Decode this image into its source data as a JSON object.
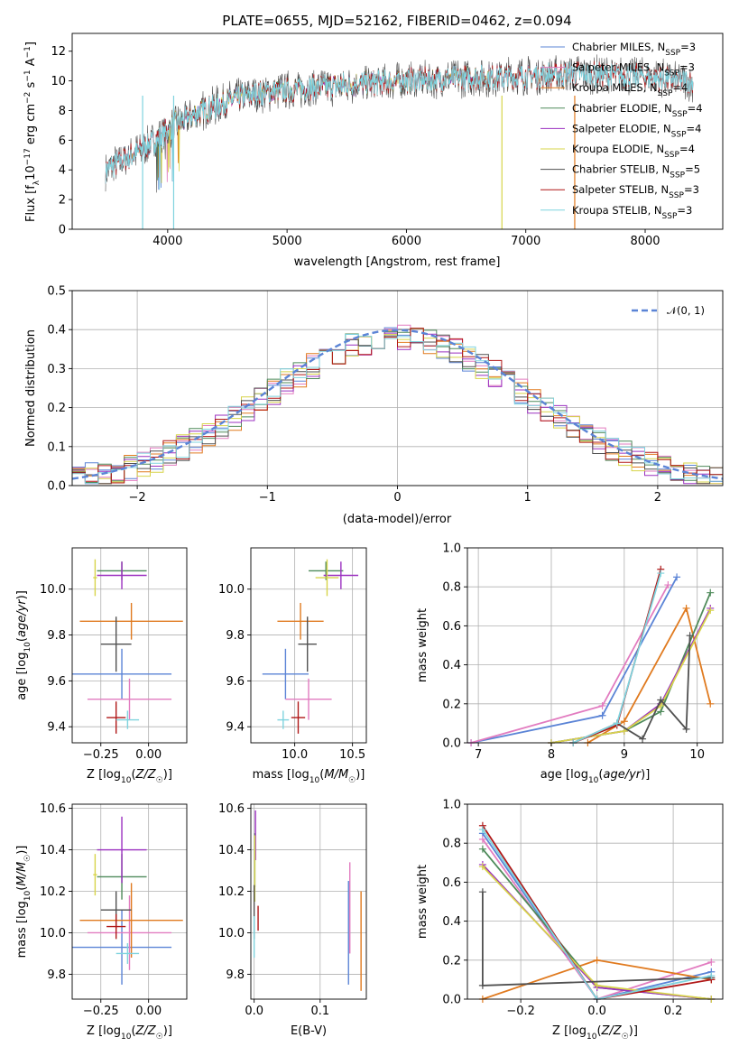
{
  "chart_data": [
    {
      "type": "line",
      "title": "PLATE=0655, MJD=52162, FIBERID=0462, z=0.094",
      "xlabel": "wavelength [Angstrom, rest frame]",
      "ylabel": "Flux [f_λ 10^-17 erg cm^-2 s^-1 A^-1]",
      "xlim": [
        3200,
        8650
      ],
      "ylim": [
        0,
        13.2
      ],
      "xticks": [
        4000,
        5000,
        6000,
        7000,
        8000
      ],
      "yticks": [
        0,
        2,
        4,
        6,
        8,
        10,
        12
      ],
      "legend_position": "right",
      "series": [
        {
          "name": "Chabrier MILES, N_SSP=3",
          "color": "#5b84d6",
          "range": [
            3540,
            7410
          ]
        },
        {
          "name": "Salpeter MILES, N_SSP=3",
          "color": "#e27cc0",
          "range": [
            3540,
            7410
          ]
        },
        {
          "name": "Kroupa MILES, N_SSP=4",
          "color": "#e07a1f",
          "range": [
            3540,
            7410
          ]
        },
        {
          "name": "Chabrier ELODIE, N_SSP=4",
          "color": "#4e8a5a",
          "range": [
            3900,
            6800
          ]
        },
        {
          "name": "Salpeter ELODIE, N_SSP=4",
          "color": "#9b30c0",
          "range": [
            3900,
            6800
          ]
        },
        {
          "name": "Kroupa ELODIE, N_SSP=4",
          "color": "#d7d44a",
          "range": [
            3900,
            6800
          ]
        },
        {
          "name": "Chabrier STELIB, N_SSP=5",
          "color": "#505050",
          "range": [
            3480,
            8400
          ]
        },
        {
          "name": "Salpeter STELIB, N_SSP=3",
          "color": "#b01717",
          "range": [
            3480,
            8400
          ]
        },
        {
          "name": "Kroupa STELIB, N_SSP=3",
          "color": "#7fd3de",
          "range": [
            3480,
            8400
          ]
        }
      ],
      "spectrum_nodes": {
        "x": [
          3480,
          3540,
          3700,
          3900,
          4050,
          4300,
          4600,
          4900,
          5200,
          5600,
          6000,
          6500,
          7000,
          7400,
          8000,
          8400
        ],
        "y": [
          4.0,
          4.3,
          5.0,
          6.0,
          7.0,
          8.0,
          8.9,
          9.3,
          9.5,
          9.8,
          10.0,
          10.2,
          10.3,
          10.5,
          10.3,
          9.9
        ]
      }
    },
    {
      "type": "step-histogram",
      "xlabel": "(data-model)/error",
      "ylabel": "Normed distribution",
      "xlim": [
        -2.5,
        2.5
      ],
      "ylim": [
        0,
        0.5
      ],
      "xticks": [
        -2,
        -1,
        0,
        1,
        2
      ],
      "yticks": [
        0.0,
        0.1,
        0.2,
        0.3,
        0.4,
        0.5
      ],
      "bin_width": 0.1,
      "reference_curve": {
        "name": "N(0,1)",
        "legend_label": "𝒩(0, 1)",
        "color": "#5b84d6",
        "style": "dashed"
      },
      "legend_position": "top-right"
    },
    {
      "type": "scatter",
      "xlabel": "Z [log10(Z/Z☉)]",
      "ylabel": "age  [log10(age/yr)]",
      "xlim": [
        -0.4,
        0.2
      ],
      "ylim": [
        9.33,
        10.18
      ],
      "xticks": [
        -0.25,
        0.0
      ],
      "yticks": [
        9.4,
        9.6,
        9.8,
        10.0
      ],
      "points": [
        {
          "model": "Chabrier MILES",
          "x": -0.14,
          "xerr": 0.26,
          "y": 9.63,
          "yerr": 0.11
        },
        {
          "model": "Salpeter MILES",
          "x": -0.1,
          "xerr": 0.22,
          "y": 9.52,
          "yerr": 0.09
        },
        {
          "model": "Kroupa MILES",
          "x": -0.09,
          "xerr": 0.27,
          "y": 9.86,
          "yerr": 0.08
        },
        {
          "model": "Chabrier ELODIE",
          "x": -0.14,
          "xerr": 0.13,
          "y": 10.08,
          "yerr": 0.04
        },
        {
          "model": "Salpeter ELODIE",
          "x": -0.14,
          "xerr": 0.13,
          "y": 10.06,
          "yerr": 0.06
        },
        {
          "model": "Kroupa ELODIE",
          "x": -0.28,
          "xerr": 0.01,
          "y": 10.05,
          "yerr": 0.08
        },
        {
          "model": "Chabrier STELIB",
          "x": -0.17,
          "xerr": 0.08,
          "y": 9.76,
          "yerr": 0.12
        },
        {
          "model": "Salpeter STELIB",
          "x": -0.17,
          "xerr": 0.05,
          "y": 9.44,
          "yerr": 0.07
        },
        {
          "model": "Kroupa STELIB",
          "x": -0.11,
          "xerr": 0.06,
          "y": 9.43,
          "yerr": 0.04
        }
      ]
    },
    {
      "type": "scatter",
      "xlabel": "mass [log10(M/M☉)]",
      "xlim": [
        9.62,
        10.62
      ],
      "ylim": [
        9.33,
        10.18
      ],
      "xticks": [
        10.0,
        10.5
      ],
      "yticks": [
        9.4,
        9.6,
        9.8,
        10.0
      ],
      "points": [
        {
          "model": "Chabrier MILES",
          "x": 9.92,
          "xerr": 0.2,
          "y": 9.63,
          "yerr": 0.11
        },
        {
          "model": "Salpeter MILES",
          "x": 10.12,
          "xerr": 0.2,
          "y": 9.52,
          "yerr": 0.09
        },
        {
          "model": "Kroupa MILES",
          "x": 10.05,
          "xerr": 0.2,
          "y": 9.86,
          "yerr": 0.08
        },
        {
          "model": "Chabrier ELODIE",
          "x": 10.27,
          "xerr": 0.15,
          "y": 10.08,
          "yerr": 0.04
        },
        {
          "model": "Salpeter ELODIE",
          "x": 10.4,
          "xerr": 0.15,
          "y": 10.06,
          "yerr": 0.06
        },
        {
          "model": "Kroupa ELODIE",
          "x": 10.28,
          "xerr": 0.1,
          "y": 10.05,
          "yerr": 0.08
        },
        {
          "model": "Chabrier STELIB",
          "x": 10.11,
          "xerr": 0.08,
          "y": 9.76,
          "yerr": 0.12
        },
        {
          "model": "Salpeter STELIB",
          "x": 10.03,
          "xerr": 0.06,
          "y": 9.44,
          "yerr": 0.07
        },
        {
          "model": "Kroupa STELIB",
          "x": 9.9,
          "xerr": 0.05,
          "y": 9.43,
          "yerr": 0.04
        }
      ]
    },
    {
      "type": "line",
      "xlabel": "age  [log10(age/yr)]",
      "ylabel": "mass weight",
      "xlim": [
        6.85,
        10.35
      ],
      "ylim": [
        0,
        1.0
      ],
      "xticks": [
        7,
        8,
        9,
        10
      ],
      "yticks": [
        0.0,
        0.2,
        0.4,
        0.6,
        0.8,
        1.0
      ],
      "series": [
        {
          "model": "Chabrier MILES",
          "x": [
            6.9,
            8.7,
            9.72
          ],
          "y": [
            0.0,
            0.14,
            0.85
          ]
        },
        {
          "model": "Salpeter MILES",
          "x": [
            6.9,
            8.7,
            9.6
          ],
          "y": [
            0.0,
            0.19,
            0.81
          ]
        },
        {
          "model": "Kroupa MILES",
          "x": [
            8.5,
            9.0,
            9.85,
            10.18
          ],
          "y": [
            0.0,
            0.11,
            0.69,
            0.2
          ]
        },
        {
          "model": "Chabrier ELODIE",
          "x": [
            8.0,
            9.0,
            9.5,
            10.18
          ],
          "y": [
            0.0,
            0.06,
            0.16,
            0.77
          ]
        },
        {
          "model": "Salpeter ELODIE",
          "x": [
            8.0,
            9.0,
            9.5,
            10.18
          ],
          "y": [
            0.0,
            0.06,
            0.2,
            0.69
          ]
        },
        {
          "model": "Kroupa ELODIE",
          "x": [
            8.0,
            9.0,
            9.5,
            10.18
          ],
          "y": [
            0.0,
            0.06,
            0.19,
            0.68
          ]
        },
        {
          "model": "Chabrier STELIB",
          "x": [
            8.3,
            8.9,
            9.25,
            9.5,
            9.85,
            9.9
          ],
          "y": [
            0.0,
            0.1,
            0.02,
            0.22,
            0.07,
            0.55
          ]
        },
        {
          "model": "Salpeter STELIB",
          "x": [
            8.3,
            8.9,
            9.5
          ],
          "y": [
            0.0,
            0.09,
            0.89
          ]
        },
        {
          "model": "Kroupa STELIB",
          "x": [
            8.3,
            8.9,
            9.5
          ],
          "y": [
            0.0,
            0.1,
            0.87
          ]
        }
      ]
    },
    {
      "type": "scatter",
      "xlabel": "Z [log10(Z/Z☉)]",
      "ylabel": "mass [log10(M/M☉)]",
      "xlim": [
        -0.4,
        0.2
      ],
      "ylim": [
        9.68,
        10.62
      ],
      "xticks": [
        -0.25,
        0.0
      ],
      "yticks": [
        9.8,
        10.0,
        10.2,
        10.4,
        10.6
      ],
      "points": [
        {
          "model": "Chabrier MILES",
          "x": -0.14,
          "xerr": 0.26,
          "y": 9.93,
          "yerr": 0.18
        },
        {
          "model": "Salpeter MILES",
          "x": -0.1,
          "xerr": 0.22,
          "y": 10.0,
          "yerr": 0.18
        },
        {
          "model": "Kroupa MILES",
          "x": -0.09,
          "xerr": 0.27,
          "y": 10.06,
          "yerr": 0.18
        },
        {
          "model": "Chabrier ELODIE",
          "x": -0.14,
          "xerr": 0.13,
          "y": 10.27,
          "yerr": 0.11
        },
        {
          "model": "Salpeter ELODIE",
          "x": -0.14,
          "xerr": 0.13,
          "y": 10.4,
          "yerr": 0.16
        },
        {
          "model": "Kroupa ELODIE",
          "x": -0.28,
          "xerr": 0.01,
          "y": 10.28,
          "yerr": 0.1
        },
        {
          "model": "Chabrier STELIB",
          "x": -0.17,
          "xerr": 0.08,
          "y": 10.11,
          "yerr": 0.09
        },
        {
          "model": "Salpeter STELIB",
          "x": -0.17,
          "xerr": 0.05,
          "y": 10.03,
          "yerr": 0.06
        },
        {
          "model": "Kroupa STELIB",
          "x": -0.11,
          "xerr": 0.06,
          "y": 9.9,
          "yerr": 0.05
        }
      ]
    },
    {
      "type": "scatter",
      "xlabel": "E(B-V)",
      "xlim": [
        -0.005,
        0.17
      ],
      "ylim": [
        9.68,
        10.62
      ],
      "xticks": [
        0.0,
        0.1
      ],
      "yticks": [
        9.8,
        10.0,
        10.2,
        10.4,
        10.6
      ],
      "points": [
        {
          "model": "Chabrier MILES",
          "x": 0.143,
          "y": 10.0,
          "yerr": 0.25
        },
        {
          "model": "Salpeter MILES",
          "x": 0.145,
          "y": 10.12,
          "yerr": 0.22
        },
        {
          "model": "Kroupa MILES",
          "x": 0.162,
          "y": 9.96,
          "yerr": 0.24
        },
        {
          "model": "Chabrier ELODIE",
          "x": 0.001,
          "y": 10.35,
          "yerr": 0.13
        },
        {
          "model": "Salpeter ELODIE",
          "x": 0.002,
          "y": 10.47,
          "yerr": 0.12
        },
        {
          "model": "Kroupa ELODIE",
          "x": 0.001,
          "y": 10.31,
          "yerr": 0.16
        },
        {
          "model": "Chabrier STELIB",
          "x": 0.0,
          "y": 10.1,
          "yerr": 0.13
        },
        {
          "model": "Salpeter STELIB",
          "x": 0.006,
          "y": 10.07,
          "yerr": 0.06
        },
        {
          "model": "Kroupa STELIB",
          "x": 0.0,
          "y": 9.98,
          "yerr": 0.1
        }
      ]
    },
    {
      "type": "line",
      "xlabel": "Z [log10(Z/Z☉)]",
      "ylabel": "mass weight",
      "xlim": [
        -0.34,
        0.33
      ],
      "ylim": [
        0,
        1.0
      ],
      "xticks": [
        -0.2,
        0.0,
        0.2
      ],
      "yticks": [
        0.0,
        0.2,
        0.4,
        0.6,
        0.8,
        1.0
      ],
      "series": [
        {
          "model": "Chabrier MILES",
          "x": [
            -0.3,
            0.0,
            0.3
          ],
          "y": [
            0.85,
            0.0,
            0.14
          ]
        },
        {
          "model": "Salpeter MILES",
          "x": [
            -0.3,
            0.0,
            0.3
          ],
          "y": [
            0.82,
            0.0,
            0.19
          ]
        },
        {
          "model": "Kroupa MILES",
          "x": [
            -0.3,
            0.0,
            0.3
          ],
          "y": [
            0.0,
            0.2,
            0.1
          ]
        },
        {
          "model": "Chabrier ELODIE",
          "x": [
            -0.3,
            0.0,
            0.3
          ],
          "y": [
            0.77,
            0.06,
            0.0
          ]
        },
        {
          "model": "Salpeter ELODIE",
          "x": [
            -0.3,
            0.0,
            0.3
          ],
          "y": [
            0.69,
            0.06,
            0.0
          ]
        },
        {
          "model": "Kroupa ELODIE",
          "x": [
            -0.3,
            0.0,
            0.3
          ],
          "y": [
            0.68,
            0.07,
            0.0
          ]
        },
        {
          "model": "Chabrier STELIB",
          "x": [
            -0.3,
            -0.3,
            0.3
          ],
          "y": [
            0.55,
            0.07,
            0.11
          ]
        },
        {
          "model": "Salpeter STELIB",
          "x": [
            -0.3,
            0.0,
            0.3
          ],
          "y": [
            0.89,
            0.0,
            0.1
          ]
        },
        {
          "model": "Kroupa STELIB",
          "x": [
            -0.3,
            0.0,
            0.3
          ],
          "y": [
            0.87,
            0.0,
            0.12
          ]
        }
      ]
    }
  ],
  "model_colors": {
    "Chabrier MILES": "#5b84d6",
    "Salpeter MILES": "#e27cc0",
    "Kroupa MILES": "#e07a1f",
    "Chabrier ELODIE": "#4e8a5a",
    "Salpeter ELODIE": "#9b30c0",
    "Kroupa ELODIE": "#d7d44a",
    "Chabrier STELIB": "#505050",
    "Salpeter STELIB": "#b01717",
    "Kroupa STELIB": "#7fd3de"
  }
}
